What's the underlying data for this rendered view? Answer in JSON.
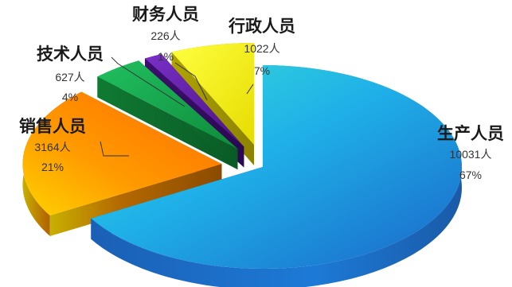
{
  "chart_data": {
    "type": "pie",
    "style": "3d-exploded",
    "legend": "none",
    "slices": [
      {
        "category": "生产人员",
        "value_label": "10031人",
        "value": 10031,
        "percent_label": "67%",
        "percent": 67,
        "color": "#2a9be0"
      },
      {
        "category": "销售人员",
        "value_label": "3164人",
        "value": 3164,
        "percent_label": "21%",
        "percent": 21,
        "color": "#ff8c00"
      },
      {
        "category": "技术人员",
        "value_label": "627人",
        "value": 627,
        "percent_label": "4%",
        "percent": 4,
        "color": "#1aa64a"
      },
      {
        "category": "财务人员",
        "value_label": "226人",
        "value": 226,
        "percent_label": "1%",
        "percent": 1,
        "color": "#5a1d9a"
      },
      {
        "category": "行政人员",
        "value_label": "1022人",
        "value": 1022,
        "percent_label": "7%",
        "percent": 7,
        "color": "#f2ef00"
      }
    ]
  }
}
